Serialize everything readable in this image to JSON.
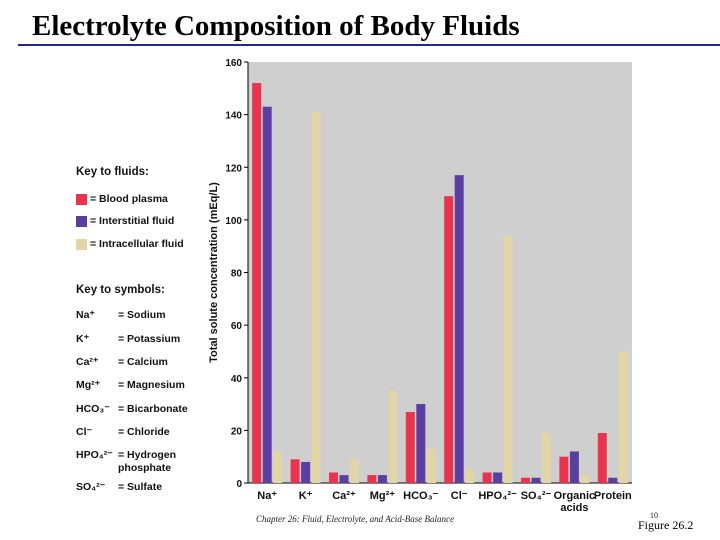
{
  "slide": {
    "title": "Electrolyte Composition of Body Fluids",
    "footer": "Chapter 26: Fluid, Electrolyte, and Acid-Base Balance",
    "page_number": "10",
    "figure_label": "Figure 26.2"
  },
  "key": {
    "fluids_heading": "Key to fluids:",
    "fluids": [
      {
        "label": "= Blood plasma",
        "color": "#e8344e"
      },
      {
        "label": "= Interstitial fluid",
        "color": "#5a3fa0"
      },
      {
        "label": "= Intracellular fluid",
        "color": "#e3d6a6"
      }
    ],
    "symbols_heading": "Key to symbols:",
    "symbols": [
      {
        "symbol": "Na⁺",
        "name": "= Sodium"
      },
      {
        "symbol": "K⁺",
        "name": "= Potassium"
      },
      {
        "symbol": "Ca²⁺",
        "name": "= Calcium"
      },
      {
        "symbol": "Mg²⁺",
        "name": "= Magnesium"
      },
      {
        "symbol": "HCO₃⁻",
        "name": "= Bicarbonate"
      },
      {
        "symbol": "Cl⁻",
        "name": "= Chloride"
      },
      {
        "symbol": "HPO₄²⁻",
        "name": "= Hydrogen phosphate"
      },
      {
        "symbol": "SO₄²⁻",
        "name": "= Sulfate"
      }
    ]
  },
  "chart_data": {
    "type": "bar",
    "ylabel": "Total solute concentration (mEq/L)",
    "xlabel": "",
    "ylim": [
      0,
      160
    ],
    "yticks": [
      0,
      20,
      40,
      60,
      80,
      100,
      120,
      140,
      160
    ],
    "grid": false,
    "categories": [
      "Na⁺",
      "K⁺",
      "Ca²⁺",
      "Mg²⁺",
      "HCO₃⁻",
      "Cl⁻",
      "HPO₄²⁻",
      "SO₄²⁻",
      "Organic acids",
      "Protein"
    ],
    "series": [
      {
        "name": "Blood plasma",
        "color": "#e8344e",
        "values": [
          152,
          9,
          4,
          3,
          27,
          109,
          4,
          2,
          10,
          19
        ]
      },
      {
        "name": "Interstitial fluid",
        "color": "#5a3fa0",
        "values": [
          143,
          8,
          3,
          3,
          30,
          117,
          4,
          2,
          12,
          2
        ]
      },
      {
        "name": "Intracellular fluid",
        "color": "#e3d6a6",
        "values": [
          12,
          141,
          9,
          35,
          13,
          5,
          94,
          19,
          3,
          50
        ]
      }
    ],
    "plot_background": "#cfcfcf"
  }
}
